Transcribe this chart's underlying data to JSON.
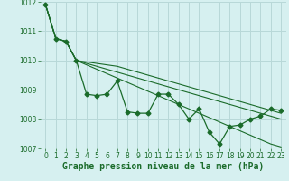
{
  "title": "Graphe pression niveau de la mer (hPa)",
  "background_color": "#d6f0f0",
  "grid_color": "#b8d8d8",
  "line_color": "#1a6b2a",
  "xlim": [
    -0.5,
    23.5
  ],
  "ylim": [
    1007,
    1012
  ],
  "yticks": [
    1007,
    1008,
    1009,
    1010,
    1011,
    1012
  ],
  "xticks": [
    0,
    1,
    2,
    3,
    4,
    5,
    6,
    7,
    8,
    9,
    10,
    11,
    12,
    13,
    14,
    15,
    16,
    17,
    18,
    19,
    20,
    21,
    22,
    23
  ],
  "series_main": [
    1011.9,
    1010.75,
    1010.65,
    1010.0,
    1008.85,
    1008.8,
    1008.85,
    1009.3,
    1008.25,
    1008.2,
    1008.2,
    1008.85,
    1008.85,
    1008.5,
    1008.0,
    1008.35,
    1007.55,
    1007.15,
    1007.75,
    1007.8,
    1008.0,
    1008.1,
    1008.35,
    1008.3
  ],
  "series_trend": [
    [
      1011.9,
      1010.75,
      1010.65,
      1010.0,
      1009.85,
      1009.7,
      1009.55,
      1009.4,
      1009.25,
      1009.1,
      1008.95,
      1008.8,
      1008.65,
      1008.5,
      1008.35,
      1008.2,
      1008.05,
      1007.9,
      1007.75,
      1007.6,
      1007.45,
      1007.3,
      1007.15,
      1007.05
    ],
    [
      1011.9,
      1010.75,
      1010.65,
      1010.0,
      1009.9,
      1009.8,
      1009.7,
      1009.6,
      1009.5,
      1009.4,
      1009.3,
      1009.2,
      1009.1,
      1009.0,
      1008.9,
      1008.8,
      1008.7,
      1008.6,
      1008.5,
      1008.4,
      1008.3,
      1008.2,
      1008.1,
      1008.0
    ],
    [
      1011.9,
      1010.75,
      1010.65,
      1010.0,
      1009.95,
      1009.9,
      1009.85,
      1009.8,
      1009.7,
      1009.6,
      1009.5,
      1009.4,
      1009.3,
      1009.2,
      1009.1,
      1009.0,
      1008.9,
      1008.8,
      1008.7,
      1008.6,
      1008.5,
      1008.4,
      1008.3,
      1008.2
    ]
  ],
  "marker": "D",
  "marker_size": 2.5,
  "title_fontsize": 7,
  "tick_fontsize": 5.5
}
